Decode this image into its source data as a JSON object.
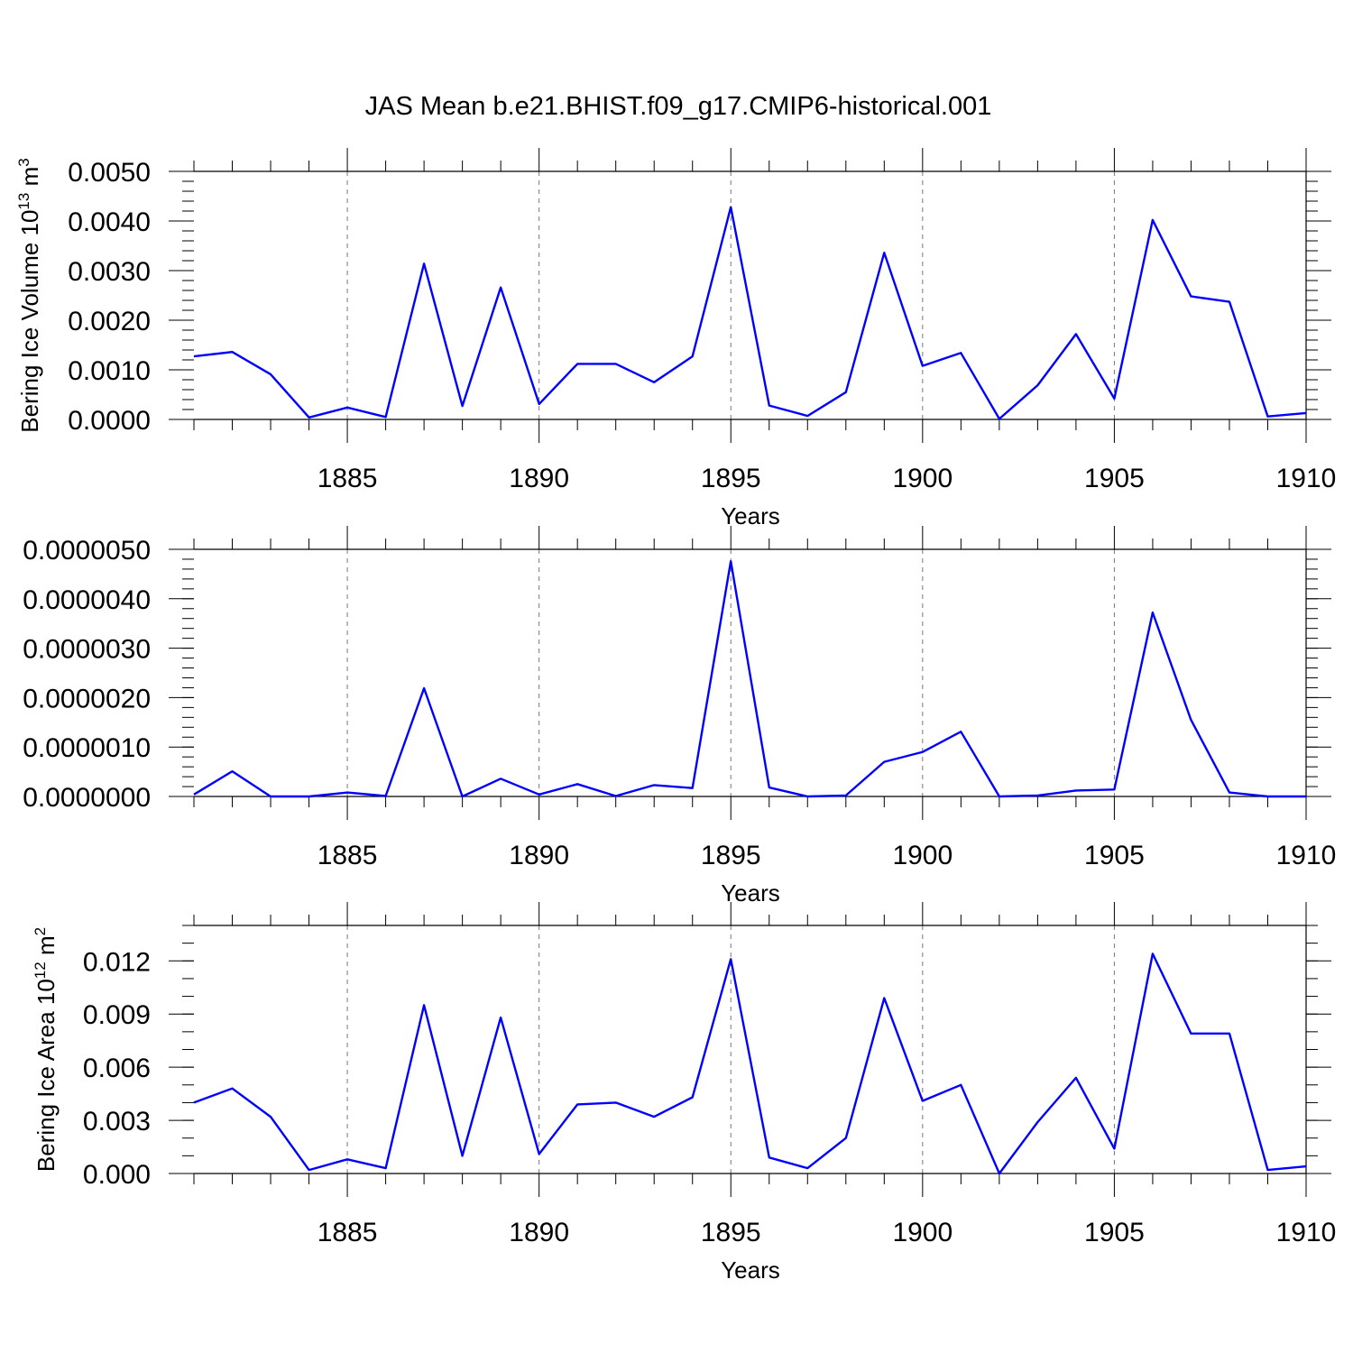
{
  "chart_data": {
    "title": "JAS Mean b.e21.BHIST.f09_g17.CMIP6-historical.001",
    "line_color": "#0000ff",
    "years": [
      1881,
      1882,
      1883,
      1884,
      1885,
      1886,
      1887,
      1888,
      1889,
      1890,
      1891,
      1892,
      1893,
      1894,
      1895,
      1896,
      1897,
      1898,
      1899,
      1900,
      1901,
      1902,
      1903,
      1904,
      1905,
      1906,
      1907,
      1908,
      1909,
      1910
    ],
    "xlim": [
      1881,
      1910
    ],
    "xticks": [
      1885,
      1890,
      1895,
      1900,
      1905,
      1910
    ],
    "xtick_labels": [
      "1885",
      "1890",
      "1895",
      "1900",
      "1905",
      "1910"
    ],
    "panels": [
      {
        "type": "line",
        "xlabel": "Years",
        "ylabel": "Bering Ice Volume 10",
        "ylabel_sup": "13",
        "ylabel_unit": " m",
        "ylabel_unit_sup": "3",
        "ylim": [
          0,
          0.005
        ],
        "yticks": [
          0,
          0.001,
          0.002,
          0.003,
          0.004,
          0.005
        ],
        "ytick_labels": [
          "0.0000",
          "0.0010",
          "0.0020",
          "0.0030",
          "0.0040",
          "0.0050"
        ],
        "minor_per_major": 5,
        "values": [
          0.00127,
          0.00136,
          0.00091,
          4e-05,
          0.00024,
          5e-05,
          0.00314,
          0.00027,
          0.00266,
          0.00031,
          0.00112,
          0.00112,
          0.00075,
          0.00127,
          0.00428,
          0.00028,
          7e-05,
          0.00055,
          0.00336,
          0.00108,
          0.00134,
          1e-05,
          0.00069,
          0.00172,
          0.00042,
          0.00402,
          0.00248,
          0.00237,
          6e-05,
          0.00013
        ]
      },
      {
        "type": "line",
        "xlabel": "Years",
        "ylabel": "",
        "ylabel_sup": "",
        "ylabel_unit": "",
        "ylabel_unit_sup": "",
        "ylim": [
          0,
          5e-06
        ],
        "yticks": [
          0,
          1e-06,
          2e-06,
          3e-06,
          4e-06,
          5e-06
        ],
        "ytick_labels": [
          "0.0000000",
          "0.0000010",
          "0.0000020",
          "0.0000030",
          "0.0000040",
          "0.0000050"
        ],
        "minor_per_major": 5,
        "values": [
          4e-08,
          5.1e-07,
          0.0,
          0.0,
          8e-08,
          1e-08,
          2.19e-06,
          0.0,
          3.6e-07,
          4e-08,
          2.5e-07,
          1e-08,
          2.3e-07,
          1.7e-07,
          4.76e-06,
          1.8e-07,
          0.0,
          2e-08,
          7e-07,
          9e-07,
          1.31e-06,
          0.0,
          2e-08,
          1.2e-07,
          1.4e-07,
          3.72e-06,
          1.55e-06,
          8e-08,
          0.0,
          0.0
        ]
      },
      {
        "type": "line",
        "xlabel": "Years",
        "ylabel": "Bering Ice Area 10",
        "ylabel_sup": "12",
        "ylabel_unit": " m",
        "ylabel_unit_sup": "2",
        "ylim": [
          0,
          0.014
        ],
        "yticks": [
          0,
          0.003,
          0.006,
          0.009,
          0.012
        ],
        "ytick_labels": [
          "0.000",
          "0.003",
          "0.006",
          "0.009",
          "0.012"
        ],
        "minor_step": 0.001,
        "values": [
          0.004,
          0.0048,
          0.0032,
          0.0002,
          0.0008,
          0.0003,
          0.0095,
          0.001,
          0.0088,
          0.0011,
          0.0039,
          0.004,
          0.0032,
          0.0043,
          0.0121,
          0.0009,
          0.0003,
          0.002,
          0.0099,
          0.0041,
          0.005,
          0.0,
          0.0029,
          0.0054,
          0.0014,
          0.0124,
          0.0079,
          0.0079,
          0.0002,
          0.0004
        ]
      }
    ]
  }
}
